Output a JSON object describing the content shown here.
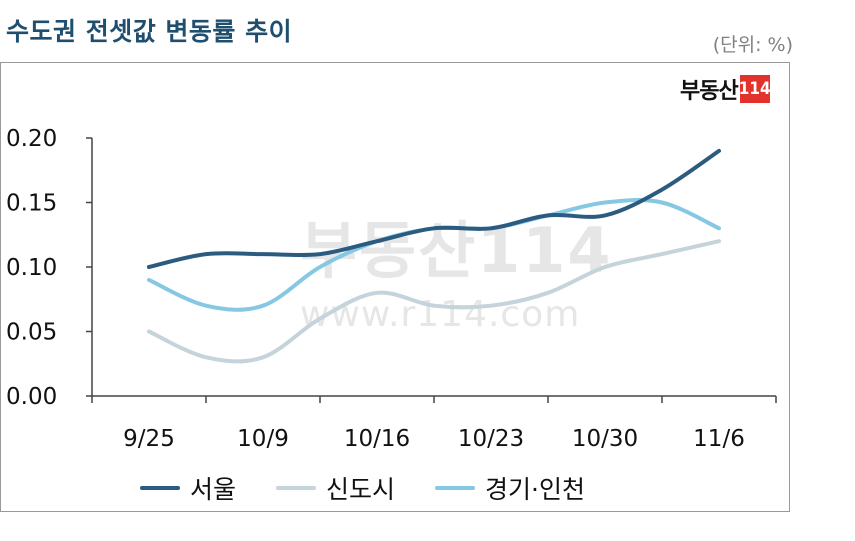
{
  "title": "수도권 전셋값 변동률 추이",
  "unit_label": "(단위: %)",
  "logo": {
    "text": "부동산",
    "box": "114"
  },
  "watermark": {
    "main": "부동산114",
    "url": "www.r114.com"
  },
  "chart_data": {
    "type": "line",
    "categories": [
      "9/25",
      "10/9",
      "10/16",
      "10/23",
      "10/30",
      "11/6"
    ],
    "ylim": [
      0.0,
      0.2
    ],
    "yticks": [
      "0.00",
      "0.05",
      "0.10",
      "0.15",
      "0.20"
    ],
    "ytick_values": [
      0.0,
      0.05,
      0.1,
      0.15,
      0.2
    ],
    "grid": false,
    "legend_position": "bottom",
    "series": [
      {
        "name": "서울",
        "color": "#2b5c80",
        "x": [
          0,
          0.5,
          1,
          1.5,
          2,
          2.5,
          3,
          3.5,
          4,
          4.5,
          5
        ],
        "values": [
          0.1,
          0.11,
          0.11,
          0.11,
          0.12,
          0.13,
          0.13,
          0.14,
          0.14,
          0.16,
          0.19
        ]
      },
      {
        "name": "신도시",
        "color": "#c4d4da",
        "x": [
          0,
          0.5,
          1,
          1.5,
          2,
          2.5,
          3,
          3.5,
          4,
          4.5,
          5
        ],
        "values": [
          0.05,
          0.03,
          0.03,
          0.06,
          0.08,
          0.07,
          0.07,
          0.08,
          0.1,
          0.11,
          0.12
        ]
      },
      {
        "name": "경기·인천",
        "color": "#86c8e3",
        "x": [
          0,
          0.5,
          1,
          1.5,
          2,
          2.5,
          3,
          3.5,
          4,
          4.5,
          5
        ],
        "values": [
          0.09,
          0.07,
          0.07,
          0.1,
          0.12,
          0.13,
          0.13,
          0.14,
          0.15,
          0.15,
          0.13
        ]
      }
    ]
  }
}
